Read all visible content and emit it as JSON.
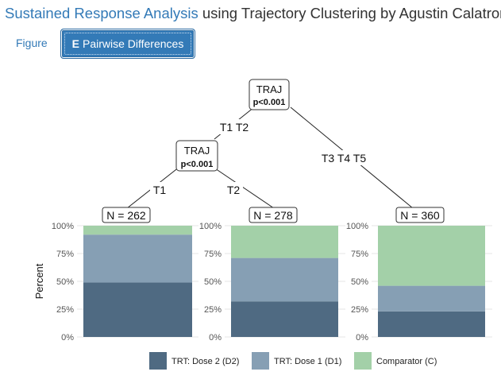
{
  "header": {
    "title_link": "Sustained Response Analysis",
    "title_rest": " using Trajectory Clustering by Agustin Calatroni"
  },
  "tabs": {
    "figure": "Figure",
    "pairwise_key": "E",
    "pairwise_label": "Pairwise Differences"
  },
  "tree": {
    "root": {
      "label": "TRAJ",
      "p": "p<0.001"
    },
    "child": {
      "label": "TRAJ",
      "p": "p<0.001"
    },
    "edges": {
      "root_left": "T1 T2",
      "root_right": "T3 T4 T5",
      "child_left": "T1",
      "child_right": "T2"
    },
    "leaves": [
      "N = 262",
      "N = 278",
      "N = 360"
    ]
  },
  "colors": {
    "dose2": "#4f6a82",
    "dose1": "#869fb4",
    "comparator": "#a3d0a8"
  },
  "chart_data": {
    "type": "bar",
    "stacked": true,
    "categories": [
      "N = 262",
      "N = 278",
      "N = 360"
    ],
    "ylabel": "Percent",
    "yticks": [
      "0%",
      "25%",
      "50%",
      "75%",
      "100%"
    ],
    "ylim": [
      0,
      100
    ],
    "series": [
      {
        "name": "TRT: Dose 2 (D2)",
        "color": "#4f6a82",
        "values": [
          49,
          32,
          23
        ]
      },
      {
        "name": "TRT: Dose 1 (D1)",
        "color": "#869fb4",
        "values": [
          43,
          39,
          23
        ]
      },
      {
        "name": "Comparator (C)",
        "color": "#a3d0a8",
        "values": [
          8,
          29,
          54
        ]
      }
    ],
    "legend_position": "bottom"
  }
}
